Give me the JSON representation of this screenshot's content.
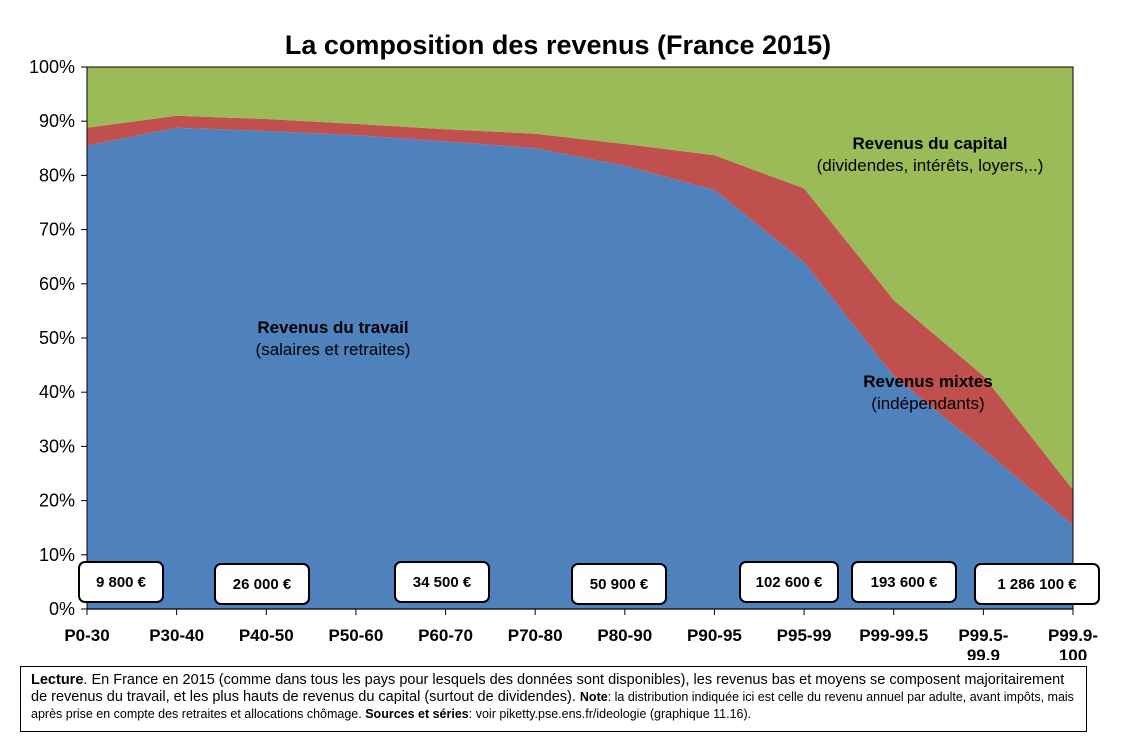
{
  "chart_data": {
    "type": "area",
    "stacked": true,
    "title": "La composition des revenus (France 2015)",
    "categories": [
      "P0-30",
      "P30-40",
      "P40-50",
      "P50-60",
      "P60-70",
      "P70-80",
      "P80-90",
      "P90-95",
      "P95-99",
      "P99-99.5",
      "P99.5-99.9",
      "P99.9-100"
    ],
    "category_lines": [
      [
        "P0-30"
      ],
      [
        "P30-40"
      ],
      [
        "P40-50"
      ],
      [
        "P50-60"
      ],
      [
        "P60-70"
      ],
      [
        "P70-80"
      ],
      [
        "P80-90"
      ],
      [
        "P90-95"
      ],
      [
        "P95-99"
      ],
      [
        "P99-99.5"
      ],
      [
        "P99.5-",
        "99.9"
      ],
      [
        "P99.9-",
        "100"
      ]
    ],
    "ylim": [
      0,
      100
    ],
    "yticks": [
      "0%",
      "10%",
      "20%",
      "30%",
      "40%",
      "50%",
      "60%",
      "70%",
      "80%",
      "90%",
      "100%"
    ],
    "series": [
      {
        "name": "Revenus du travail",
        "color": "#4f81bd",
        "values": [
          85.5,
          88.8,
          88.2,
          87.4,
          86.3,
          85.0,
          81.8,
          77.3,
          64.0,
          43.0,
          29.5,
          15.5
        ]
      },
      {
        "name": "Revenus mixtes",
        "color": "#c0504d",
        "values": [
          3.3,
          2.2,
          2.2,
          2.1,
          2.2,
          2.7,
          4.0,
          6.4,
          13.6,
          14.0,
          13.5,
          6.5
        ]
      },
      {
        "name": "Revenus du capital",
        "color": "#9bbb59",
        "values": [
          11.2,
          9.0,
          9.6,
          10.5,
          11.5,
          12.3,
          14.2,
          16.3,
          22.4,
          43.0,
          57.0,
          78.0
        ]
      }
    ],
    "annotations": [
      {
        "bold": "Revenus du travail",
        "sub": "(salaires et retraites)"
      },
      {
        "bold": "Revenus mixtes",
        "sub": "(indépendants)"
      },
      {
        "bold": "Revenus du capital",
        "sub": "(dividendes, intérêts, loyers,..)"
      }
    ],
    "income_boxes": [
      "9 800 €",
      "26 000 €",
      "34 500 €",
      "50 900 €",
      "102 600 €",
      "193 600 €",
      "1 286 100 €"
    ],
    "grid": false,
    "legend": "none"
  },
  "note": {
    "lecture_label": "Lecture",
    "lecture_text": ". En France en 2015 (comme dans tous les pays pour lesquels des données sont disponibles), les revenus bas et moyens se composent majoritairement de revenus du travail, et les plus hauts de revenus du capital (surtout de dividendes). ",
    "note_label": "Note",
    "note_text": ": la distribution indiquée ici est celle du revenu annuel par adulte, avant impôts, mais après prise en compte des retraites et allocations chômage. ",
    "sources_label": "Sources et séries",
    "sources_text": ": voir piketty.pse.ens.fr/ideologie (graphique 11.16)."
  }
}
